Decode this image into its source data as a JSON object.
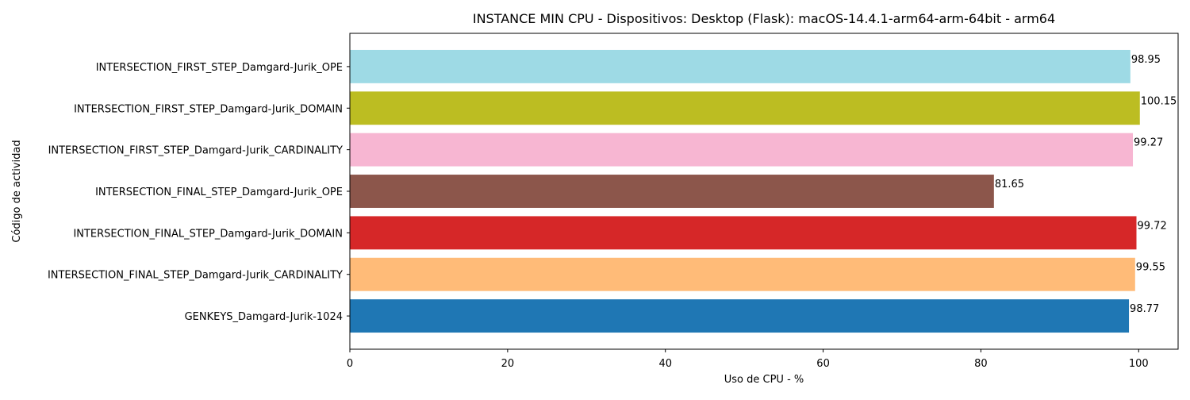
{
  "chart_data": {
    "type": "bar",
    "orientation": "horizontal",
    "title": "INSTANCE MIN CPU - Dispositivos: Desktop (Flask): macOS-14.4.1-arm64-arm-64bit - arm64",
    "xlabel": "Uso de CPU - %",
    "ylabel": "Código de actividad",
    "xlim": [
      0,
      105
    ],
    "xticks": [
      "0",
      "20",
      "40",
      "60",
      "80",
      "100"
    ],
    "xtick_values": [
      0,
      20,
      40,
      60,
      80,
      100
    ],
    "grid": false,
    "categories": [
      "GENKEYS_Damgard-Jurik-1024",
      "INTERSECTION_FINAL_STEP_Damgard-Jurik_CARDINALITY",
      "INTERSECTION_FINAL_STEP_Damgard-Jurik_DOMAIN",
      "INTERSECTION_FINAL_STEP_Damgard-Jurik_OPE",
      "INTERSECTION_FIRST_STEP_Damgard-Jurik_CARDINALITY",
      "INTERSECTION_FIRST_STEP_Damgard-Jurik_DOMAIN",
      "INTERSECTION_FIRST_STEP_Damgard-Jurik_OPE"
    ],
    "values": [
      98.77,
      99.55,
      99.72,
      81.65,
      99.27,
      100.15,
      98.95
    ],
    "value_labels": [
      "98.77",
      "99.55",
      "99.72",
      "81.65",
      "99.27",
      "100.15",
      "98.95"
    ],
    "colors": [
      "#1f77b4",
      "#ffbb78",
      "#d62728",
      "#8c564b",
      "#f7b6d2",
      "#bcbd22",
      "#9edae5"
    ]
  }
}
